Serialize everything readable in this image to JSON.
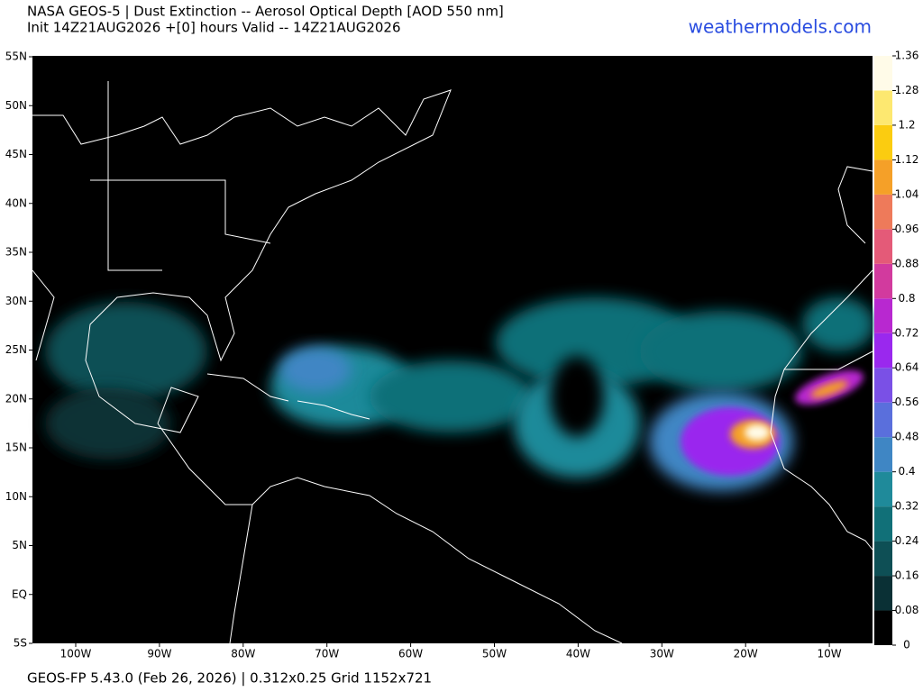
{
  "header": {
    "title": "NASA GEOS-5 | Dust Extinction -- Aerosol Optical Depth [AOD 550 nm]",
    "subtitle": "Init 14Z21AUG2026 +[0] hours Valid -- 14Z21AUG2026",
    "site": "weathermodels.com"
  },
  "map": {
    "lat_labels": [
      "55N",
      "50N",
      "45N",
      "40N",
      "35N",
      "30N",
      "25N",
      "20N",
      "15N",
      "10N",
      "5N",
      "EQ",
      "5S"
    ],
    "lon_labels": [
      "100W",
      "90W",
      "80W",
      "70W",
      "60W",
      "50W",
      "40W",
      "30W",
      "20W",
      "10W"
    ]
  },
  "colorbar": {
    "ticks": [
      0,
      0.08,
      0.16,
      0.24,
      0.32,
      0.4,
      0.48,
      0.56,
      0.64,
      0.72,
      0.8,
      0.88,
      0.96,
      1.04,
      1.12,
      1.2,
      1.28,
      1.36
    ],
    "colors": [
      "#000000",
      "#0a3035",
      "#0e4f55",
      "#117078",
      "#1f8a9a",
      "#3f86c4",
      "#5a6fdc",
      "#7a50e6",
      "#9a28ee",
      "#b828d0",
      "#d23a9e",
      "#e45a78",
      "#ee7a5a",
      "#f5a028",
      "#fbcc10",
      "#fde870",
      "#fffbe8"
    ]
  },
  "footer": "GEOS-FP 5.43.0 (Feb 26, 2026) | 0.312x0.25 Grid 1152x721"
}
